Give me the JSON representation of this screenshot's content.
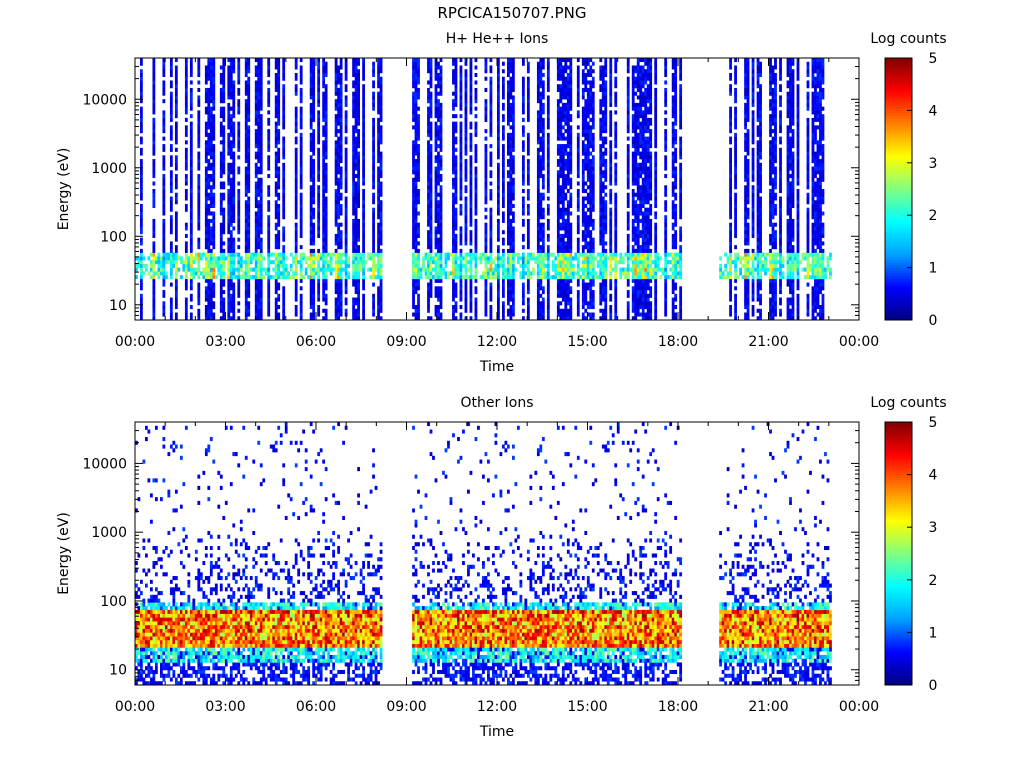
{
  "page": {
    "title": "RPCICA150707.PNG"
  },
  "colorscale": {
    "stops": [
      "#000080",
      "#0000ff",
      "#00a0ff",
      "#00ffff",
      "#80ff80",
      "#ffff00",
      "#ff8000",
      "#ff0000",
      "#800000"
    ],
    "background": "#ffffff",
    "axis_color": "#000000"
  },
  "chart_data": [
    {
      "type": "heatmap",
      "title": "H+ He++ Ions",
      "xlabel": "Time",
      "ylabel": "Energy (eV)",
      "x_ticks": [
        "00:00",
        "03:00",
        "06:00",
        "09:00",
        "12:00",
        "15:00",
        "18:00",
        "21:00",
        "00:00"
      ],
      "x_range_hours": [
        0,
        24
      ],
      "y_scale": "log",
      "y_range": [
        6,
        40000
      ],
      "y_ticks": [
        {
          "value": 10,
          "label": "10"
        },
        {
          "value": 100,
          "label": "100"
        },
        {
          "value": 1000,
          "label": "1000"
        },
        {
          "value": 10000,
          "label": "10000"
        }
      ],
      "colorbar": {
        "label": "Log counts",
        "range": [
          0,
          5
        ],
        "ticks": [
          "0",
          "1",
          "2",
          "3",
          "4",
          "5"
        ]
      },
      "data_gaps_hours": [
        [
          8.2,
          9.2
        ],
        [
          18.1,
          19.4
        ],
        [
          23.1,
          24.0
        ]
      ],
      "description_values": {
        "peak_energy_band_eV": [
          25,
          60
        ],
        "peak_log_counts": 3.5,
        "background_log_counts": 0.5,
        "coverage": "dense vertical stripes"
      }
    },
    {
      "type": "heatmap",
      "title": "Other Ions",
      "xlabel": "Time",
      "ylabel": "Energy (eV)",
      "x_ticks": [
        "00:00",
        "03:00",
        "06:00",
        "09:00",
        "12:00",
        "15:00",
        "18:00",
        "21:00",
        "00:00"
      ],
      "x_range_hours": [
        0,
        24
      ],
      "y_scale": "log",
      "y_range": [
        6,
        40000
      ],
      "y_ticks": [
        {
          "value": 10,
          "label": "10"
        },
        {
          "value": 100,
          "label": "100"
        },
        {
          "value": 1000,
          "label": "1000"
        },
        {
          "value": 10000,
          "label": "10000"
        }
      ],
      "colorbar": {
        "label": "Log counts",
        "range": [
          0,
          5
        ],
        "ticks": [
          "0",
          "1",
          "2",
          "3",
          "4",
          "5"
        ]
      },
      "data_gaps_hours": [
        [
          8.2,
          9.2
        ],
        [
          18.1,
          19.4
        ],
        [
          23.1,
          24.0
        ]
      ],
      "description_values": {
        "peak_energy_band_eV": [
          20,
          70
        ],
        "peak_log_counts": 4.8,
        "background_log_counts": 0.3,
        "coverage": "sparse speckle above 100 eV"
      }
    }
  ]
}
